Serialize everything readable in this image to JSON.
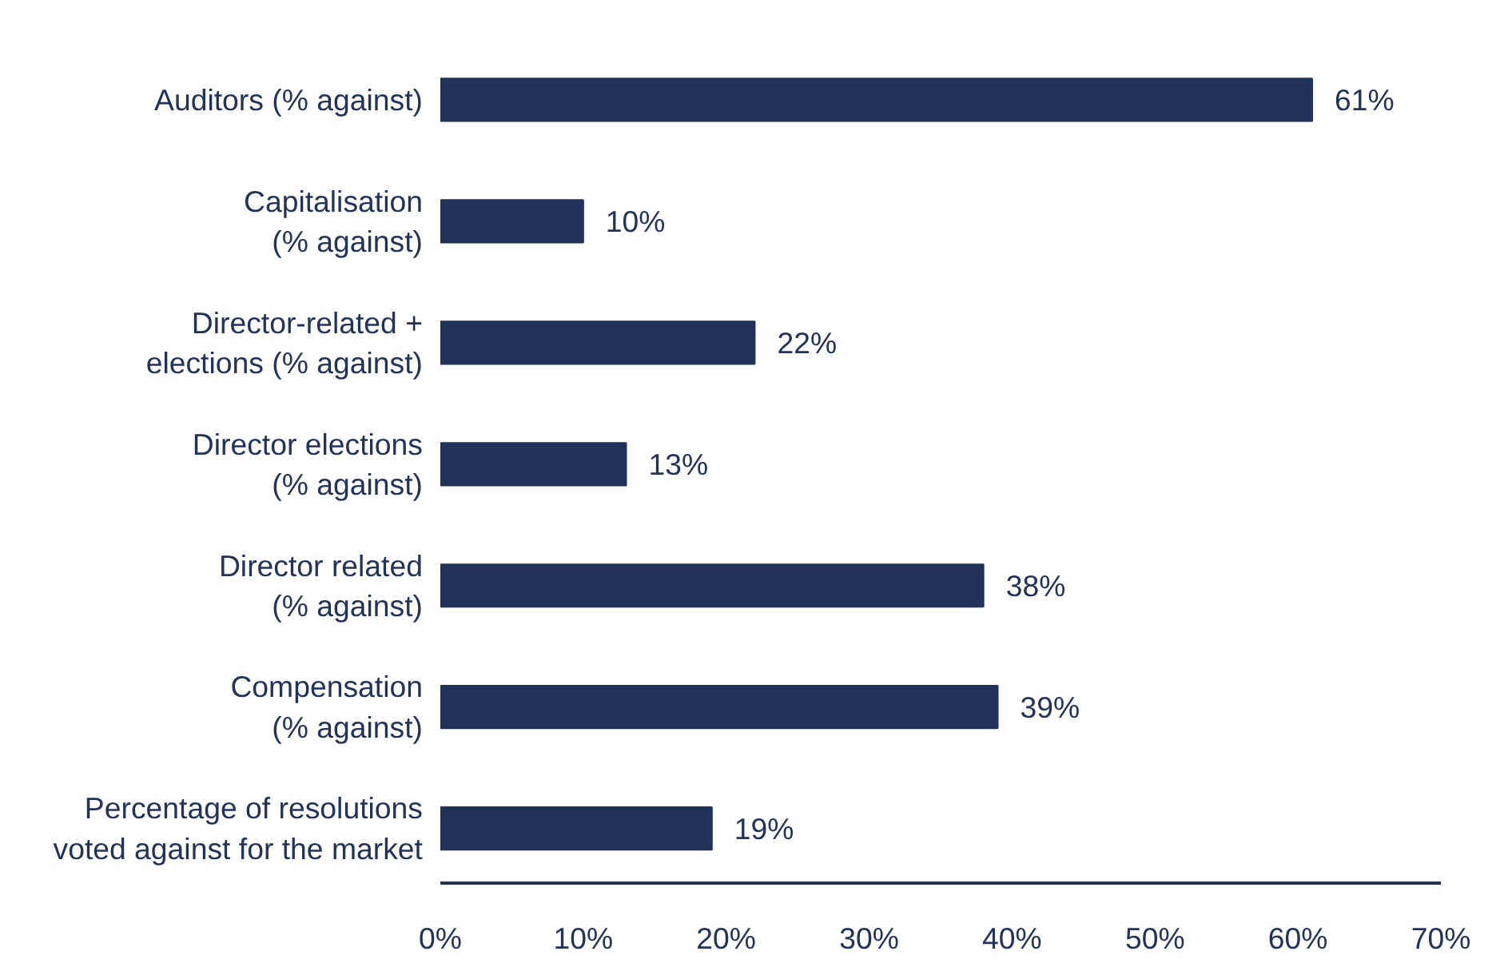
{
  "chart_data": {
    "type": "bar",
    "orientation": "horizontal",
    "categories": [
      "Auditors (% against)",
      "Capitalisation (% against)",
      "Director-related + elections (% against)",
      "Director elections (% against)",
      "Director related (% against)",
      "Compensation (% against)",
      "Percentage of resolutions voted against for the market"
    ],
    "values": [
      61,
      10,
      22,
      13,
      38,
      39,
      19
    ],
    "value_labels": [
      "61%",
      "10%",
      "22%",
      "13%",
      "38%",
      "39%",
      "19%"
    ],
    "color": "#22335a",
    "xlim": [
      0,
      70
    ],
    "xticks": [
      {
        "value": 0,
        "label": "0%"
      },
      {
        "value": 10,
        "label": "10%"
      },
      {
        "value": 20,
        "label": "20%"
      },
      {
        "value": 30,
        "label": "30%"
      },
      {
        "value": 40,
        "label": "40%"
      },
      {
        "value": 50,
        "label": "50%"
      },
      {
        "value": 60,
        "label": "60%"
      },
      {
        "value": 70,
        "label": "70%"
      }
    ],
    "grid": false
  }
}
